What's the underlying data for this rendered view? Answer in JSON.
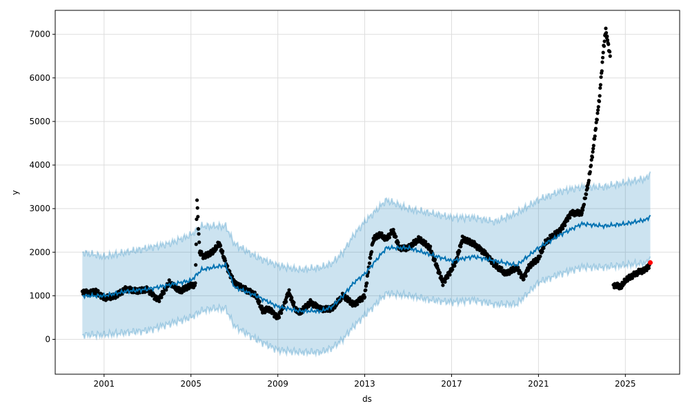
{
  "chart_data": {
    "type": "line",
    "title": "",
    "xlabel": "ds",
    "ylabel": "y",
    "xlim": [
      1998.75,
      2027.5
    ],
    "ylim": [
      -800,
      7550
    ],
    "xticks": [
      2001,
      2005,
      2009,
      2013,
      2017,
      2021,
      2025
    ],
    "yticks": [
      0,
      1000,
      2000,
      3000,
      4000,
      5000,
      6000,
      7000
    ],
    "grid": true,
    "colors": {
      "actual": "#000000",
      "forecast": "#0072B2",
      "interval": "#0072B2",
      "highlight": "#ff0000"
    },
    "actual": {
      "x": [
        2000.0,
        2000.3,
        2000.6,
        2001.0,
        2001.5,
        2002.0,
        2002.5,
        2003.0,
        2003.5,
        2004.0,
        2004.5,
        2005.0,
        2005.2,
        2005.28,
        2005.4,
        2005.6,
        2006.0,
        2006.3,
        2006.7,
        2007.0,
        2007.5,
        2008.0,
        2008.3,
        2008.6,
        2009.0,
        2009.3,
        2009.5,
        2009.8,
        2010.0,
        2010.5,
        2011.0,
        2011.5,
        2012.0,
        2012.5,
        2013.0,
        2013.2,
        2013.4,
        2013.7,
        2014.0,
        2014.3,
        2014.6,
        2015.0,
        2015.5,
        2016.0,
        2016.3,
        2016.6,
        2017.0,
        2017.2,
        2017.5,
        2018.0,
        2018.5,
        2019.0,
        2019.5,
        2020.0,
        2020.3,
        2020.6,
        2021.0,
        2021.3,
        2021.6,
        2022.0,
        2022.5,
        2023.0,
        2023.3,
        2023.5,
        2023.8,
        2024.0,
        2024.1,
        2024.3
      ],
      "y": [
        1100,
        1050,
        1100,
        950,
        1000,
        1150,
        1100,
        1150,
        900,
        1300,
        1100,
        1250,
        1250,
        3200,
        2000,
        1900,
        2000,
        2200,
        1600,
        1300,
        1150,
        1000,
        650,
        700,
        500,
        800,
        1100,
        700,
        600,
        850,
        700,
        700,
        1000,
        800,
        1000,
        1700,
        2300,
        2400,
        2300,
        2500,
        2100,
        2100,
        2300,
        2100,
        1700,
        1300,
        1600,
        1800,
        2300,
        2200,
        2000,
        1700,
        1500,
        1650,
        1400,
        1700,
        1850,
        2200,
        2350,
        2500,
        2900,
        2900,
        3600,
        4300,
        5500,
        6700,
        7100,
        6500
      ]
    },
    "actual_recent": {
      "x": [
        2024.45,
        2024.8,
        2025.0,
        2025.3,
        2025.6,
        2025.9,
        2026.1
      ],
      "y": [
        1250,
        1200,
        1350,
        1450,
        1550,
        1600,
        1700
      ]
    },
    "highlight": {
      "x": [
        2026.15
      ],
      "y": [
        1760
      ]
    },
    "forecast": {
      "x": [
        2000,
        2001,
        2002,
        2003,
        2004,
        2005,
        2005.5,
        2006,
        2006.6,
        2007,
        2008,
        2009,
        2010,
        2011,
        2011.5,
        2012,
        2012.5,
        2013,
        2014,
        2015,
        2016,
        2017,
        2018,
        2019,
        2020,
        2021,
        2022,
        2023,
        2024,
        2025,
        2026,
        2026.15
      ],
      "yhat": [
        1000,
        1000,
        1100,
        1150,
        1250,
        1350,
        1600,
        1650,
        1700,
        1200,
        1000,
        750,
        650,
        650,
        750,
        1000,
        1300,
        1500,
        2100,
        2100,
        1950,
        1800,
        1900,
        1800,
        1700,
        2100,
        2400,
        2650,
        2600,
        2650,
        2750,
        2850
      ],
      "lower": [
        100,
        100,
        150,
        200,
        350,
        500,
        650,
        700,
        700,
        300,
        0,
        -250,
        -300,
        -300,
        -200,
        0,
        300,
        550,
        1050,
        1000,
        900,
        850,
        900,
        800,
        800,
        1300,
        1500,
        1650,
        1650,
        1700,
        1750,
        1900
      ],
      "upper": [
        2000,
        1900,
        2000,
        2100,
        2200,
        2400,
        2600,
        2600,
        2600,
        2200,
        1900,
        1700,
        1600,
        1650,
        1750,
        2000,
        2400,
        2700,
        3200,
        3000,
        2900,
        2800,
        2800,
        2700,
        2900,
        3200,
        3400,
        3500,
        3500,
        3600,
        3700,
        3850
      ]
    }
  }
}
